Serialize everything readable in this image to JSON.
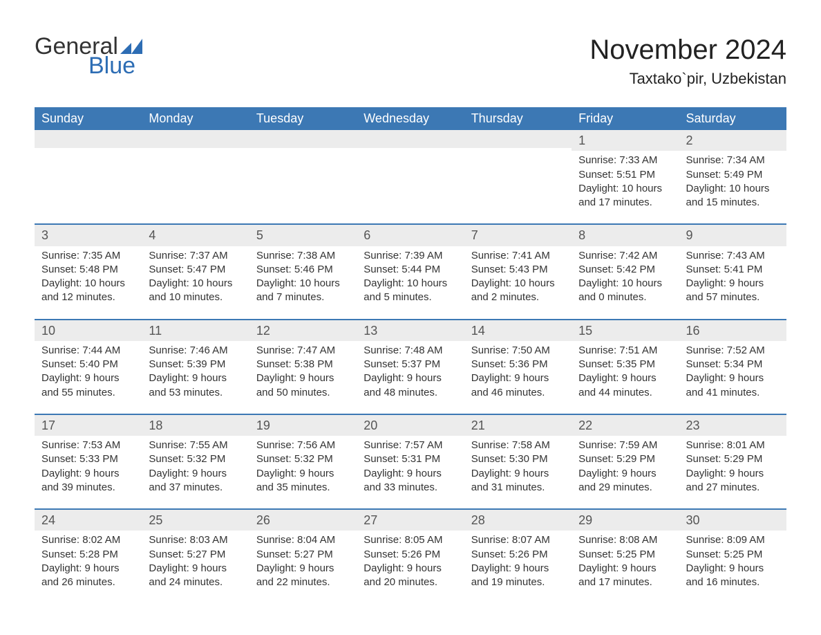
{
  "brand": {
    "line1": "General",
    "line2": "Blue"
  },
  "title": "November 2024",
  "location": "Taxtako`pir, Uzbekistan",
  "colors": {
    "header_bg": "#3c78b4",
    "header_text": "#ffffff",
    "row_divider": "#3c78b4",
    "daynum_bg": "#ececec",
    "body_text": "#333333",
    "brand_blue": "#2d6db4"
  },
  "weekdays": [
    "Sunday",
    "Monday",
    "Tuesday",
    "Wednesday",
    "Thursday",
    "Friday",
    "Saturday"
  ],
  "weeks": [
    [
      null,
      null,
      null,
      null,
      null,
      {
        "d": "1",
        "sr": "Sunrise: 7:33 AM",
        "ss": "Sunset: 5:51 PM",
        "dl1": "Daylight: 10 hours",
        "dl2": "and 17 minutes."
      },
      {
        "d": "2",
        "sr": "Sunrise: 7:34 AM",
        "ss": "Sunset: 5:49 PM",
        "dl1": "Daylight: 10 hours",
        "dl2": "and 15 minutes."
      }
    ],
    [
      {
        "d": "3",
        "sr": "Sunrise: 7:35 AM",
        "ss": "Sunset: 5:48 PM",
        "dl1": "Daylight: 10 hours",
        "dl2": "and 12 minutes."
      },
      {
        "d": "4",
        "sr": "Sunrise: 7:37 AM",
        "ss": "Sunset: 5:47 PM",
        "dl1": "Daylight: 10 hours",
        "dl2": "and 10 minutes."
      },
      {
        "d": "5",
        "sr": "Sunrise: 7:38 AM",
        "ss": "Sunset: 5:46 PM",
        "dl1": "Daylight: 10 hours",
        "dl2": "and 7 minutes."
      },
      {
        "d": "6",
        "sr": "Sunrise: 7:39 AM",
        "ss": "Sunset: 5:44 PM",
        "dl1": "Daylight: 10 hours",
        "dl2": "and 5 minutes."
      },
      {
        "d": "7",
        "sr": "Sunrise: 7:41 AM",
        "ss": "Sunset: 5:43 PM",
        "dl1": "Daylight: 10 hours",
        "dl2": "and 2 minutes."
      },
      {
        "d": "8",
        "sr": "Sunrise: 7:42 AM",
        "ss": "Sunset: 5:42 PM",
        "dl1": "Daylight: 10 hours",
        "dl2": "and 0 minutes."
      },
      {
        "d": "9",
        "sr": "Sunrise: 7:43 AM",
        "ss": "Sunset: 5:41 PM",
        "dl1": "Daylight: 9 hours",
        "dl2": "and 57 minutes."
      }
    ],
    [
      {
        "d": "10",
        "sr": "Sunrise: 7:44 AM",
        "ss": "Sunset: 5:40 PM",
        "dl1": "Daylight: 9 hours",
        "dl2": "and 55 minutes."
      },
      {
        "d": "11",
        "sr": "Sunrise: 7:46 AM",
        "ss": "Sunset: 5:39 PM",
        "dl1": "Daylight: 9 hours",
        "dl2": "and 53 minutes."
      },
      {
        "d": "12",
        "sr": "Sunrise: 7:47 AM",
        "ss": "Sunset: 5:38 PM",
        "dl1": "Daylight: 9 hours",
        "dl2": "and 50 minutes."
      },
      {
        "d": "13",
        "sr": "Sunrise: 7:48 AM",
        "ss": "Sunset: 5:37 PM",
        "dl1": "Daylight: 9 hours",
        "dl2": "and 48 minutes."
      },
      {
        "d": "14",
        "sr": "Sunrise: 7:50 AM",
        "ss": "Sunset: 5:36 PM",
        "dl1": "Daylight: 9 hours",
        "dl2": "and 46 minutes."
      },
      {
        "d": "15",
        "sr": "Sunrise: 7:51 AM",
        "ss": "Sunset: 5:35 PM",
        "dl1": "Daylight: 9 hours",
        "dl2": "and 44 minutes."
      },
      {
        "d": "16",
        "sr": "Sunrise: 7:52 AM",
        "ss": "Sunset: 5:34 PM",
        "dl1": "Daylight: 9 hours",
        "dl2": "and 41 minutes."
      }
    ],
    [
      {
        "d": "17",
        "sr": "Sunrise: 7:53 AM",
        "ss": "Sunset: 5:33 PM",
        "dl1": "Daylight: 9 hours",
        "dl2": "and 39 minutes."
      },
      {
        "d": "18",
        "sr": "Sunrise: 7:55 AM",
        "ss": "Sunset: 5:32 PM",
        "dl1": "Daylight: 9 hours",
        "dl2": "and 37 minutes."
      },
      {
        "d": "19",
        "sr": "Sunrise: 7:56 AM",
        "ss": "Sunset: 5:32 PM",
        "dl1": "Daylight: 9 hours",
        "dl2": "and 35 minutes."
      },
      {
        "d": "20",
        "sr": "Sunrise: 7:57 AM",
        "ss": "Sunset: 5:31 PM",
        "dl1": "Daylight: 9 hours",
        "dl2": "and 33 minutes."
      },
      {
        "d": "21",
        "sr": "Sunrise: 7:58 AM",
        "ss": "Sunset: 5:30 PM",
        "dl1": "Daylight: 9 hours",
        "dl2": "and 31 minutes."
      },
      {
        "d": "22",
        "sr": "Sunrise: 7:59 AM",
        "ss": "Sunset: 5:29 PM",
        "dl1": "Daylight: 9 hours",
        "dl2": "and 29 minutes."
      },
      {
        "d": "23",
        "sr": "Sunrise: 8:01 AM",
        "ss": "Sunset: 5:29 PM",
        "dl1": "Daylight: 9 hours",
        "dl2": "and 27 minutes."
      }
    ],
    [
      {
        "d": "24",
        "sr": "Sunrise: 8:02 AM",
        "ss": "Sunset: 5:28 PM",
        "dl1": "Daylight: 9 hours",
        "dl2": "and 26 minutes."
      },
      {
        "d": "25",
        "sr": "Sunrise: 8:03 AM",
        "ss": "Sunset: 5:27 PM",
        "dl1": "Daylight: 9 hours",
        "dl2": "and 24 minutes."
      },
      {
        "d": "26",
        "sr": "Sunrise: 8:04 AM",
        "ss": "Sunset: 5:27 PM",
        "dl1": "Daylight: 9 hours",
        "dl2": "and 22 minutes."
      },
      {
        "d": "27",
        "sr": "Sunrise: 8:05 AM",
        "ss": "Sunset: 5:26 PM",
        "dl1": "Daylight: 9 hours",
        "dl2": "and 20 minutes."
      },
      {
        "d": "28",
        "sr": "Sunrise: 8:07 AM",
        "ss": "Sunset: 5:26 PM",
        "dl1": "Daylight: 9 hours",
        "dl2": "and 19 minutes."
      },
      {
        "d": "29",
        "sr": "Sunrise: 8:08 AM",
        "ss": "Sunset: 5:25 PM",
        "dl1": "Daylight: 9 hours",
        "dl2": "and 17 minutes."
      },
      {
        "d": "30",
        "sr": "Sunrise: 8:09 AM",
        "ss": "Sunset: 5:25 PM",
        "dl1": "Daylight: 9 hours",
        "dl2": "and 16 minutes."
      }
    ]
  ]
}
